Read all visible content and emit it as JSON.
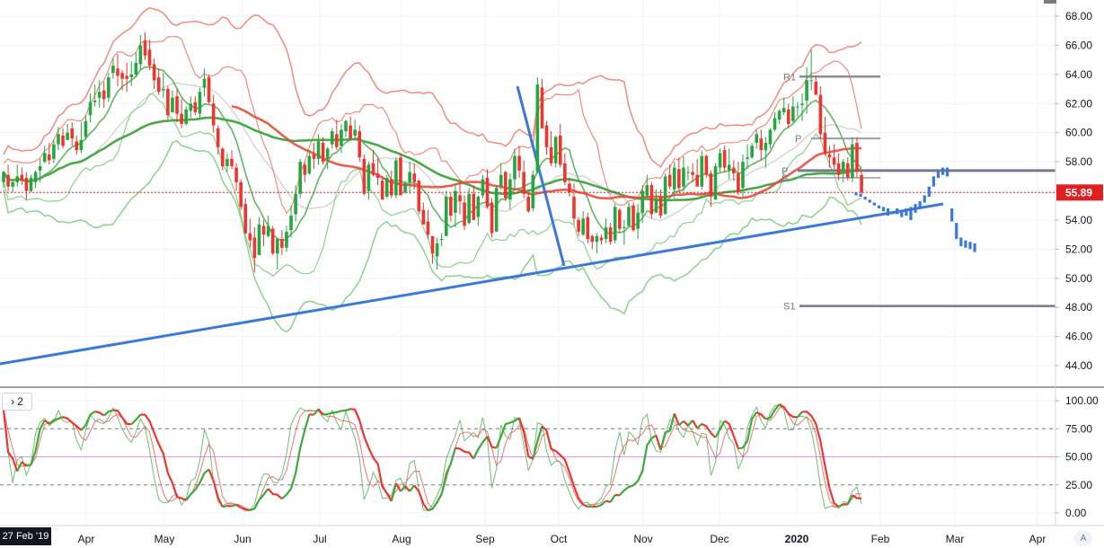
{
  "chart_data": {
    "type": "candlestick",
    "price_axis": {
      "ticks": [
        "68.00",
        "66.00",
        "64.00",
        "62.00",
        "60.00",
        "58.00",
        "56.00",
        "54.00",
        "52.00",
        "50.00",
        "48.00",
        "46.00",
        "44.00"
      ],
      "range": [
        43,
        69
      ]
    },
    "current_price": {
      "label": "55.89",
      "value": 55.89,
      "color": "#e02020"
    },
    "time_axis": {
      "labels": [
        "Apr",
        "May",
        "Jun",
        "Jul",
        "Aug",
        "Sep",
        "Oct",
        "Nov",
        "Dec",
        "2020",
        "Feb",
        "Mar",
        "Apr"
      ]
    },
    "crosshair_date": "27 Feb '19",
    "oscillator": {
      "pane_label": "2",
      "ticks": [
        "100.00",
        "75.00",
        "50.00",
        "25.00",
        "0.00"
      ],
      "levels": [
        75,
        50,
        25
      ],
      "range": [
        -5,
        105
      ]
    },
    "pivot_labels": [
      "R1",
      "P",
      "P",
      "S",
      "S1"
    ],
    "colors": {
      "up": "#26a640",
      "down": "#ef3530",
      "trendline": "#3b78d8",
      "ma_long": "#4aa84a",
      "ma_red": "#e84c3d",
      "band_red": "#f08c80",
      "band_green": "#8ed08e",
      "band_gray": "#d6d6d6",
      "pivot": "#787b86"
    },
    "candles": [
      [
        56.6,
        57.4,
        56.2,
        57.3
      ],
      [
        57.1,
        57.8,
        56.0,
        56.3
      ],
      [
        56.3,
        56.7,
        55.9,
        56.6
      ],
      [
        56.6,
        57.8,
        56.3,
        57.0
      ],
      [
        57.1,
        57.6,
        56.4,
        56.7
      ],
      [
        56.9,
        57.3,
        55.4,
        56.0
      ],
      [
        56.0,
        57.1,
        55.9,
        56.9
      ],
      [
        56.6,
        57.4,
        56.2,
        57.3
      ],
      [
        57.4,
        58.2,
        56.6,
        57.7
      ],
      [
        58.0,
        59.1,
        57.9,
        58.6
      ],
      [
        58.5,
        59.3,
        57.8,
        58.1
      ],
      [
        58.2,
        59.5,
        57.9,
        59.2
      ],
      [
        59.2,
        60.4,
        58.8,
        59.9
      ],
      [
        59.8,
        60.3,
        58.9,
        59.1
      ],
      [
        59.5,
        60.6,
        59.5,
        60.0
      ],
      [
        60.3,
        60.7,
        59.1,
        59.6
      ],
      [
        59.4,
        59.8,
        58.5,
        58.8
      ],
      [
        58.8,
        60.7,
        58.6,
        59.5
      ],
      [
        59.7,
        61.2,
        59.5,
        60.8
      ],
      [
        61.2,
        62.7,
        60.7,
        62.1
      ],
      [
        62.1,
        63.3,
        61.8,
        62.2
      ],
      [
        62.4,
        63.6,
        61.7,
        62.8
      ],
      [
        62.9,
        63.5,
        61.7,
        62.3
      ],
      [
        62.4,
        64.1,
        62.1,
        63.8
      ],
      [
        64.1,
        65.1,
        63.7,
        64.6
      ],
      [
        64.4,
        65.4,
        63.2,
        63.9
      ],
      [
        64.1,
        64.3,
        62.9,
        63.7
      ],
      [
        63.9,
        64.8,
        62.8,
        63.7
      ],
      [
        63.8,
        64.9,
        63.2,
        64.0
      ],
      [
        64.0,
        65.5,
        63.8,
        64.8
      ],
      [
        64.7,
        66.7,
        64.3,
        66.0
      ],
      [
        66.3,
        66.9,
        65.0,
        65.3
      ],
      [
        65.7,
        66.4,
        64.3,
        64.6
      ],
      [
        64.7,
        65.1,
        63.0,
        63.6
      ],
      [
        63.8,
        64.4,
        62.6,
        62.8
      ],
      [
        62.9,
        64.1,
        62.4,
        63.0
      ],
      [
        63.0,
        63.2,
        60.9,
        61.2
      ],
      [
        61.4,
        62.9,
        61.4,
        62.4
      ],
      [
        62.5,
        63.0,
        60.7,
        61.3
      ],
      [
        61.3,
        62.3,
        60.3,
        60.6
      ],
      [
        60.6,
        61.8,
        60.5,
        61.6
      ],
      [
        61.5,
        62.5,
        61.0,
        62.0
      ],
      [
        62.1,
        62.5,
        61.2,
        61.4
      ],
      [
        61.3,
        63.1,
        61.0,
        62.8
      ],
      [
        63.1,
        64.4,
        62.5,
        63.7
      ],
      [
        63.8,
        64.0,
        62.0,
        62.1
      ],
      [
        62.0,
        62.6,
        60.0,
        60.5
      ],
      [
        60.3,
        60.5,
        58.5,
        59.0
      ],
      [
        58.9,
        59.0,
        57.4,
        57.7
      ],
      [
        57.7,
        58.6,
        57.3,
        58.2
      ],
      [
        58.2,
        58.8,
        57.5,
        57.7
      ],
      [
        57.6,
        57.9,
        56.0,
        56.6
      ],
      [
        56.6,
        56.8,
        54.7,
        54.9
      ],
      [
        55.1,
        55.5,
        53.0,
        53.1
      ],
      [
        53.1,
        54.1,
        52.1,
        52.6
      ],
      [
        52.8,
        53.5,
        50.4,
        51.4
      ],
      [
        51.6,
        54.2,
        51.6,
        53.7
      ],
      [
        53.6,
        54.0,
        52.2,
        53.0
      ],
      [
        52.9,
        54.3,
        52.8,
        53.6
      ],
      [
        53.4,
        53.6,
        51.6,
        51.7
      ],
      [
        51.7,
        52.8,
        50.6,
        52.7
      ],
      [
        52.7,
        53.3,
        51.6,
        52.1
      ],
      [
        52.1,
        53.6,
        51.8,
        53.2
      ],
      [
        53.3,
        55.0,
        52.8,
        54.3
      ],
      [
        54.4,
        56.4,
        53.9,
        55.8
      ],
      [
        55.8,
        58.2,
        55.5,
        58.0
      ],
      [
        57.8,
        58.0,
        56.6,
        57.1
      ],
      [
        57.2,
        58.8,
        57.1,
        58.4
      ],
      [
        58.5,
        59.3,
        57.5,
        58.2
      ],
      [
        58.2,
        59.9,
        57.8,
        59.4
      ],
      [
        59.3,
        59.7,
        57.8,
        58.0
      ],
      [
        58.2,
        59.0,
        57.5,
        58.9
      ],
      [
        59.2,
        60.3,
        58.9,
        60.1
      ],
      [
        59.9,
        60.9,
        58.8,
        59.0
      ],
      [
        59.1,
        60.6,
        58.6,
        60.2
      ],
      [
        60.1,
        60.9,
        59.7,
        60.8
      ],
      [
        60.5,
        61.1,
        59.5,
        59.6
      ],
      [
        59.8,
        60.9,
        59.5,
        60.2
      ],
      [
        60.1,
        60.5,
        58.0,
        58.3
      ],
      [
        58.2,
        58.5,
        55.7,
        55.8
      ],
      [
        56.0,
        58.0,
        55.4,
        57.8
      ],
      [
        57.9,
        58.8,
        57.0,
        57.1
      ],
      [
        57.2,
        58.2,
        56.4,
        56.9
      ],
      [
        56.7,
        57.0,
        55.4,
        55.4
      ],
      [
        55.6,
        57.1,
        55.5,
        56.9
      ],
      [
        56.8,
        57.4,
        55.5,
        55.7
      ],
      [
        55.7,
        58.3,
        55.5,
        58.1
      ],
      [
        58.3,
        58.6,
        55.7,
        55.7
      ],
      [
        55.9,
        56.7,
        55.8,
        56.5
      ],
      [
        56.6,
        58.0,
        55.8,
        57.3
      ],
      [
        57.2,
        57.9,
        56.1,
        56.6
      ],
      [
        56.7,
        56.8,
        54.4,
        54.6
      ],
      [
        54.7,
        55.2,
        53.7,
        53.7
      ],
      [
        53.9,
        54.7,
        52.7,
        53.0
      ],
      [
        52.9,
        52.9,
        51.0,
        51.7
      ],
      [
        51.5,
        52.8,
        50.6,
        52.4
      ],
      [
        52.7,
        53.1,
        52.2,
        52.7
      ],
      [
        52.9,
        56.0,
        52.9,
        55.6
      ],
      [
        55.6,
        55.9,
        53.9,
        54.3
      ],
      [
        54.5,
        56.5,
        53.5,
        56.0
      ],
      [
        55.7,
        56.6,
        54.4,
        55.3
      ],
      [
        55.2,
        55.7,
        53.3,
        53.6
      ],
      [
        53.8,
        56.2,
        53.7,
        55.8
      ],
      [
        55.8,
        56.4,
        54.0,
        54.0
      ],
      [
        54.2,
        55.7,
        53.6,
        55.6
      ],
      [
        55.7,
        57.1,
        55.5,
        56.8
      ],
      [
        56.9,
        57.5,
        54.8,
        54.9
      ],
      [
        55.2,
        55.5,
        52.8,
        53.1
      ],
      [
        53.2,
        56.4,
        53.2,
        56.2
      ],
      [
        56.3,
        57.9,
        56.1,
        57.1
      ],
      [
        57.3,
        57.4,
        55.3,
        55.5
      ],
      [
        55.4,
        57.2,
        54.7,
        56.8
      ],
      [
        56.8,
        58.9,
        56.1,
        58.4
      ],
      [
        58.4,
        59.1,
        56.9,
        57.4
      ],
      [
        57.3,
        58.1,
        55.5,
        55.8
      ],
      [
        55.6,
        55.9,
        54.5,
        54.6
      ],
      [
        54.8,
        57.4,
        54.6,
        57.1
      ],
      [
        57.3,
        63.8,
        57.2,
        63.3
      ],
      [
        63.1,
        63.7,
        60.3,
        60.3
      ],
      [
        60.5,
        60.8,
        58.5,
        59.0
      ],
      [
        59.0,
        60.1,
        57.7,
        57.9
      ],
      [
        57.9,
        59.8,
        57.6,
        59.7
      ],
      [
        59.8,
        60.6,
        57.6,
        57.8
      ],
      [
        57.9,
        58.6,
        56.4,
        56.6
      ],
      [
        56.5,
        56.9,
        55.6,
        55.9
      ],
      [
        55.6,
        56.5,
        53.7,
        54.1
      ],
      [
        54.0,
        54.2,
        52.9,
        53.2
      ],
      [
        53.0,
        54.6,
        52.9,
        54.1
      ],
      [
        54.2,
        54.5,
        52.4,
        52.7
      ],
      [
        52.9,
        53.0,
        52.0,
        52.5
      ],
      [
        52.5,
        53.1,
        51.7,
        52.9
      ],
      [
        52.8,
        53.0,
        52.3,
        52.6
      ],
      [
        52.7,
        54.1,
        52.4,
        53.5
      ],
      [
        53.5,
        53.8,
        52.3,
        52.5
      ],
      [
        52.6,
        55.1,
        52.4,
        54.9
      ],
      [
        54.7,
        54.8,
        53.1,
        53.4
      ],
      [
        53.5,
        54.0,
        52.3,
        53.5
      ],
      [
        53.6,
        55.2,
        53.5,
        54.9
      ],
      [
        55.0,
        55.2,
        53.2,
        53.3
      ],
      [
        53.4,
        55.1,
        52.7,
        54.5
      ],
      [
        54.5,
        56.4,
        53.8,
        56.0
      ],
      [
        55.7,
        57.1,
        55.5,
        56.4
      ],
      [
        56.4,
        56.6,
        54.1,
        54.4
      ],
      [
        54.5,
        56.1,
        54.5,
        55.5
      ],
      [
        55.6,
        56.1,
        54.1,
        54.3
      ],
      [
        54.4,
        57.2,
        54.4,
        57.0
      ],
      [
        57.1,
        57.8,
        56.1,
        56.3
      ],
      [
        56.1,
        58.0,
        55.5,
        57.6
      ],
      [
        57.5,
        58.3,
        55.9,
        56.2
      ],
      [
        56.3,
        58.4,
        56.0,
        57.6
      ],
      [
        57.3,
        57.7,
        56.7,
        57.3
      ],
      [
        57.3,
        57.9,
        56.6,
        57.1
      ],
      [
        57.1,
        58.2,
        56.3,
        56.3
      ],
      [
        56.3,
        58.8,
        56.1,
        58.4
      ],
      [
        58.4,
        58.5,
        56.9,
        57.1
      ],
      [
        57.2,
        57.4,
        54.9,
        55.6
      ],
      [
        55.4,
        57.9,
        55.4,
        57.7
      ],
      [
        57.6,
        58.9,
        57.3,
        58.6
      ],
      [
        58.8,
        59.1,
        57.3,
        57.6
      ],
      [
        57.4,
        58.9,
        56.8,
        57.8
      ],
      [
        57.6,
        58.1,
        56.7,
        57.2
      ],
      [
        57.2,
        58.0,
        55.7,
        55.9
      ],
      [
        56.2,
        58.5,
        55.5,
        58.0
      ],
      [
        58.2,
        59.2,
        57.5,
        58.3
      ],
      [
        58.3,
        59.3,
        58.2,
        59.1
      ],
      [
        59.3,
        60.2,
        58.9,
        59.9
      ],
      [
        59.6,
        60.2,
        58.1,
        58.8
      ],
      [
        58.8,
        59.7,
        57.6,
        59.3
      ],
      [
        59.2,
        60.3,
        58.9,
        60.2
      ],
      [
        60.2,
        61.4,
        60.1,
        61.0
      ],
      [
        60.9,
        61.6,
        60.6,
        61.5
      ],
      [
        61.4,
        62.4,
        61.2,
        61.7
      ],
      [
        61.6,
        62.0,
        60.3,
        60.6
      ],
      [
        60.8,
        62.5,
        60.7,
        61.8
      ],
      [
        61.8,
        62.1,
        61.1,
        61.8
      ],
      [
        61.9,
        62.7,
        60.8,
        62.0
      ],
      [
        62.2,
        64.5,
        61.3,
        63.6
      ],
      [
        63.6,
        65.7,
        62.9,
        63.6
      ],
      [
        63.5,
        63.9,
        62.6,
        62.6
      ],
      [
        62.6,
        63.2,
        59.6,
        59.9
      ],
      [
        60.0,
        61.1,
        58.4,
        58.6
      ],
      [
        58.5,
        59.1,
        57.6,
        58.3
      ],
      [
        58.3,
        59.2,
        57.5,
        57.8
      ],
      [
        57.9,
        58.6,
        56.7,
        57.1
      ],
      [
        57.3,
        58.2,
        56.6,
        58.0
      ],
      [
        57.9,
        58.3,
        56.7,
        56.9
      ],
      [
        56.9,
        59.7,
        56.6,
        59.2
      ],
      [
        59.3,
        59.7,
        56.9,
        57.3
      ],
      [
        57.1,
        57.4,
        55.6,
        55.9
      ]
    ],
    "forecast": [
      [
        55.9,
        55.7
      ],
      [
        55.8,
        55.6
      ],
      [
        55.6,
        55.4
      ],
      [
        55.4,
        55.2
      ],
      [
        55.2,
        55.0
      ],
      [
        55.0,
        54.8
      ],
      [
        54.9,
        54.6
      ],
      [
        54.8,
        54.3
      ],
      [
        54.6,
        54.4
      ],
      [
        54.8,
        54.4
      ],
      [
        54.6,
        54.2
      ],
      [
        54.8,
        54.3
      ],
      [
        54.9,
        54.0
      ],
      [
        55.1,
        54.5
      ],
      [
        55.3,
        54.8
      ],
      [
        55.7,
        55.2
      ],
      [
        56.3,
        55.6
      ],
      [
        57.0,
        56.3
      ],
      [
        57.4,
        56.9
      ],
      [
        57.6,
        57.1
      ],
      [
        57.6,
        57.0
      ],
      [
        54.8,
        53.9
      ],
      [
        53.8,
        52.7
      ],
      [
        52.8,
        52.2
      ],
      [
        52.6,
        52.1
      ],
      [
        52.5,
        52.0
      ],
      [
        52.4,
        51.8
      ]
    ]
  }
}
